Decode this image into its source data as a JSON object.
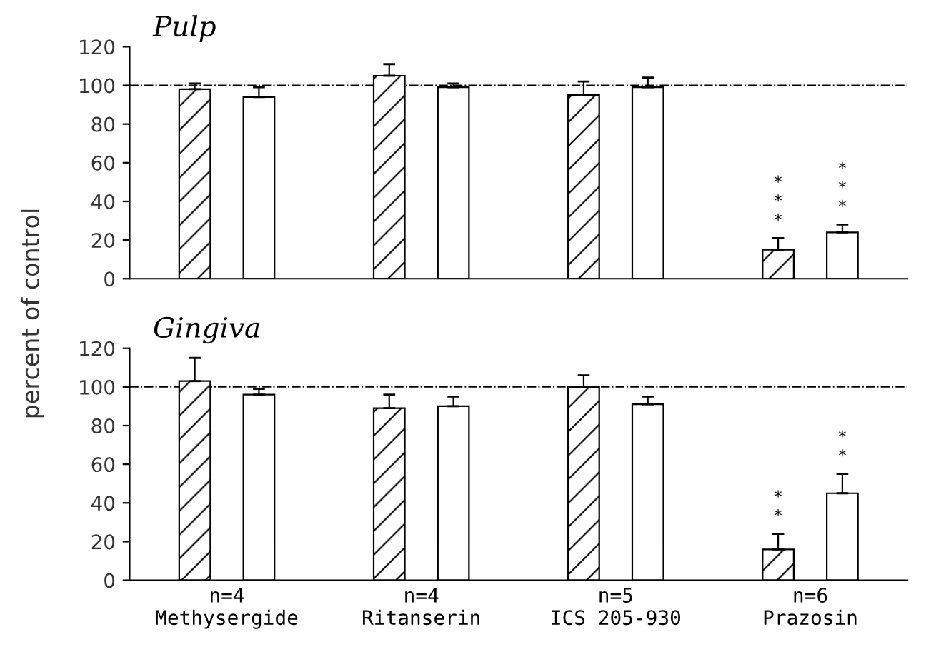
{
  "chart_data": [
    {
      "type": "bar",
      "title": "Pulp",
      "ylabel": "percent of control",
      "categories": [
        null,
        null,
        null,
        null
      ],
      "series": [
        {
          "color": "#000000",
          "values": [
            98,
            105,
            95,
            15
          ],
          "errors": [
            3,
            6,
            7,
            6
          ]
        },
        {
          "color": "#ffffff",
          "values": [
            94,
            99,
            99,
            24
          ],
          "errors": [
            5,
            2,
            5,
            4
          ]
        }
      ],
      "ylim": [
        0,
        120
      ],
      "yticks": [
        0,
        20,
        40,
        60,
        80,
        100,
        120
      ],
      "tick_labels": "y",
      "grid": false,
      "ref_lines": [
        {
          "axis": "y",
          "value": 100,
          "line_style": "dashdot"
        }
      ],
      "annotations": [
        "***",
        "***"
      ]
    },
    {
      "type": "bar",
      "title": "Gingiva",
      "categories": [
        "n=4\nMethysergide",
        "n=4\nRitanserin",
        "n=5\nICS 205-930",
        "n=6\nPrazosin"
      ],
      "series": [
        {
          "color": "#000000",
          "values": [
            103,
            89,
            100,
            16
          ],
          "errors": [
            12,
            7,
            6,
            8
          ]
        },
        {
          "color": "#ffffff",
          "values": [
            96,
            90,
            91,
            45
          ],
          "errors": [
            3,
            5,
            4,
            10
          ]
        }
      ],
      "ylim": [
        0,
        120
      ],
      "yticks": [
        0,
        20,
        40,
        60,
        80,
        100,
        120
      ],
      "grid": false,
      "ref_lines": [
        {
          "axis": "y",
          "value": 100,
          "line_style": "dashdot"
        }
      ],
      "annotations": [
        "**",
        "**"
      ]
    }
  ]
}
